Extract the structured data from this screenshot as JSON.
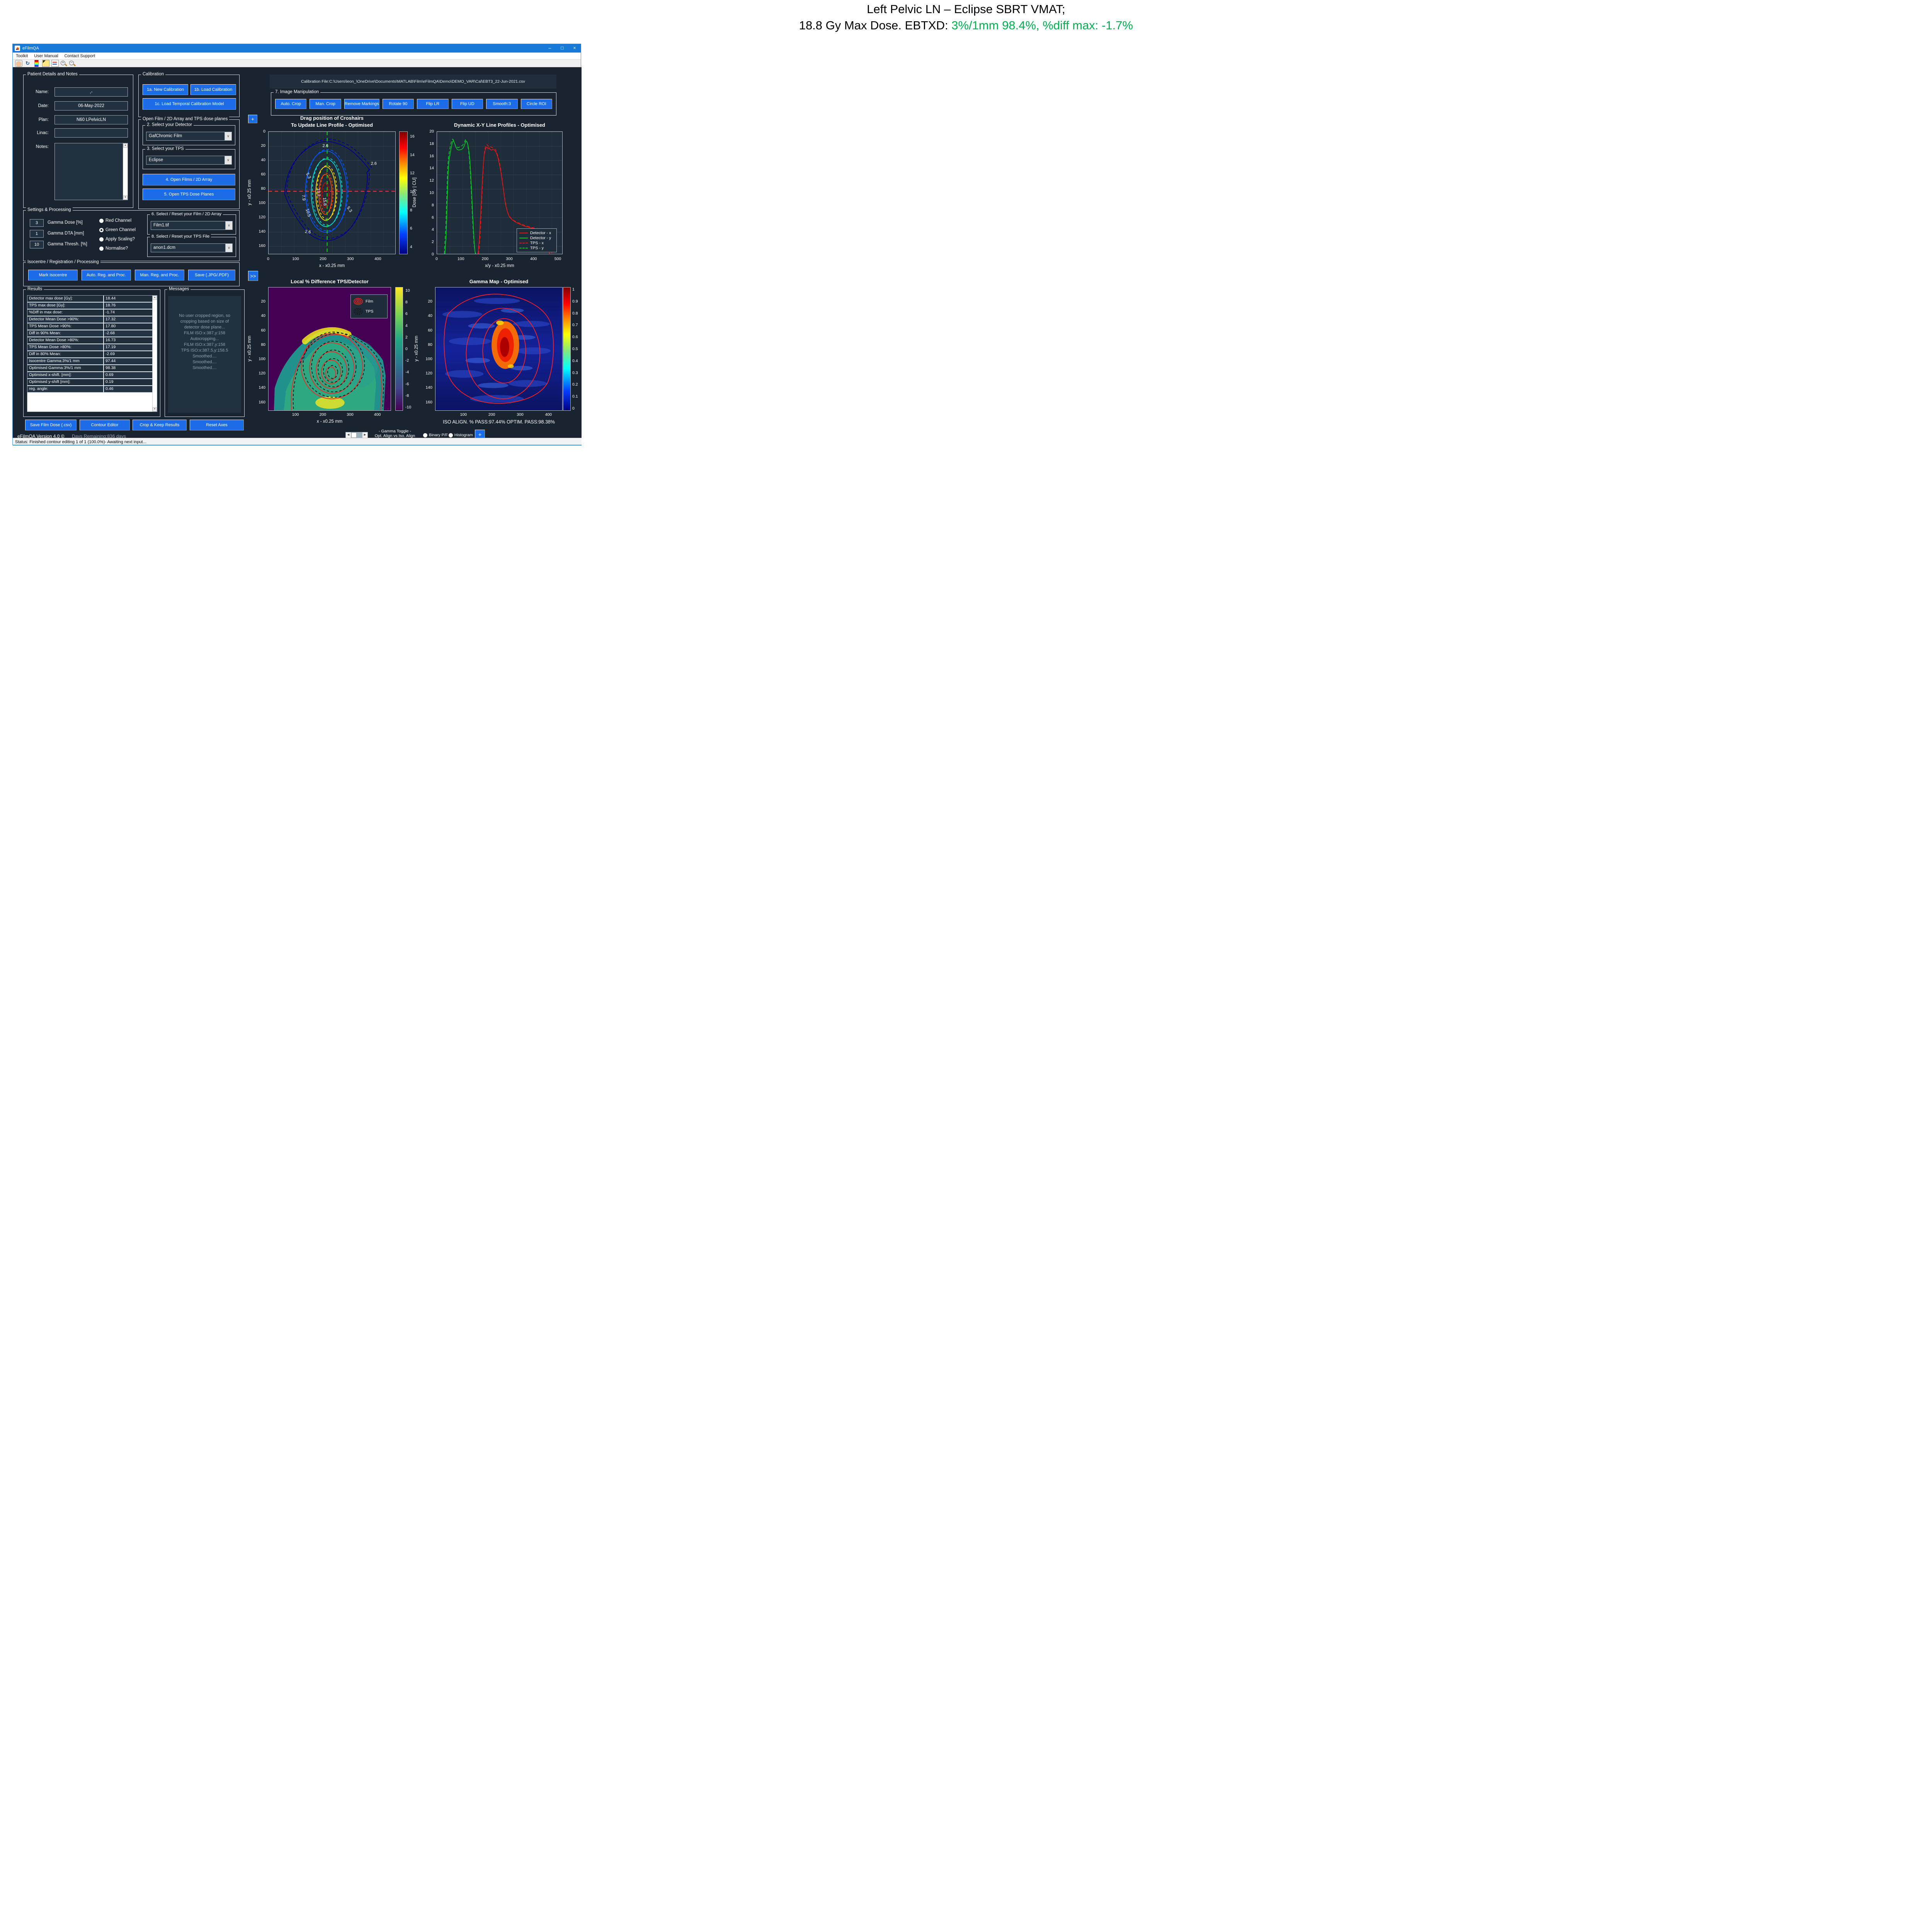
{
  "header": {
    "line1": "Left Pelvic LN – Eclipse SBRT VMAT;",
    "line2_black": "18.8 Gy Max Dose. EBTXD: ",
    "line2_green": "3%/1mm 98.4%, %diff max: -1.7%",
    "green_color": "#00b050"
  },
  "window": {
    "title": "eFilmQA",
    "minimize": "–",
    "maximize": "□",
    "close": "×"
  },
  "menu": {
    "items": [
      "Toolkit",
      "User Manual",
      "Contact Support"
    ]
  },
  "toolbar": {
    "icons": [
      "pan-hand-icon",
      "rotate-3d-icon",
      "colorbar-icon",
      "data-cursor-icon",
      "legend-icon",
      "zoom-in-icon",
      "zoom-out-icon"
    ]
  },
  "patient": {
    "title": "Patient Details and Notes",
    "name_label": "Name:",
    "name_value": ",-",
    "date_label": "Date:",
    "date_value": "06-May-2022",
    "plan_label": "Plan:",
    "plan_value": "N60 LPelvicLN",
    "linac_label": "Linac:",
    "linac_value": "",
    "notes_label": "Notes:",
    "notes_value": ""
  },
  "calibration": {
    "title": "Calibration",
    "btn_new": "1a. New Calibration",
    "btn_load": "1b. Load Calibration",
    "btn_temporal": "1c. Load Temporal Calibration Model"
  },
  "open_film": {
    "title": "Open Film / 2D Array and TPS dose planes",
    "detector_group": "2. Select your Detector",
    "detector_value": "GafChromic Film",
    "tps_group": "3. Select your TPS",
    "tps_value": "Eclipse",
    "btn_open_films": "4. Open Films / 2D Array",
    "btn_open_tps": "5. Open TPS Dose Planes"
  },
  "settings": {
    "title": "Settings & Processing",
    "fields": [
      {
        "value": "3",
        "label": "Gamma Dose [%]"
      },
      {
        "value": "1",
        "label": "Gamma DTA [mm]"
      },
      {
        "value": "10",
        "label": "Gamma Thresh. [%]"
      }
    ],
    "channels": [
      {
        "label": "Red Channel",
        "selected": false
      },
      {
        "label": "Green Channel",
        "selected": true
      },
      {
        "label": "Apply Scaling?",
        "selected": false
      },
      {
        "label": "Normalise?",
        "selected": false
      }
    ],
    "film_group": "6. Select / Reset your Film / 2D Array",
    "film_value": "Film1.tif",
    "tps_group": "8. Select / Reset your TPS File",
    "tps_value": "anon1.dcm"
  },
  "isocentre": {
    "title": "Isocentre / Registration / Processing",
    "buttons": [
      "Mark Isocentre",
      "Auto. Reg. and Proc.",
      "Man. Reg. and Proc.",
      "Save (.JPG/.PDF)"
    ]
  },
  "results": {
    "title": "Results",
    "rows": [
      {
        "label": "Detector max dose [Gy]:",
        "value": "18.44"
      },
      {
        "label": "TPS max dose [Gy]:",
        "value": "18.76"
      },
      {
        "label": "%Diff in max dose:",
        "value": "-1.74"
      },
      {
        "label": "Detector Mean Dose >90%:",
        "value": "17.32"
      },
      {
        "label": "TPS Mean Dose >90%:",
        "value": "17.80"
      },
      {
        "label": "Diff in 90% Mean:",
        "value": "-2.68"
      },
      {
        "label": "Detector Mean Dose >80%:",
        "value": "16.73"
      },
      {
        "label": "TPS Mean Dose >80%:",
        "value": "17.19"
      },
      {
        "label": "Diff in 80% Mean:",
        "value": "-2.69"
      },
      {
        "label": "Isocentre Gamma:3%/1 mm",
        "value": "97.44"
      },
      {
        "label": "Optimised Gamma:3%/1 mm",
        "value": "98.38"
      },
      {
        "label": "Optimised x-shift. [mm]:",
        "value": "0.69"
      },
      {
        "label": "Optimised y-shift [mm]:",
        "value": "0.19"
      },
      {
        "label": "reg. angle:",
        "value": "0.46"
      }
    ]
  },
  "messages": {
    "title": "Messages",
    "lines": [
      "No user cropped region, so",
      "cropping based on size of",
      "detector dose plane...",
      "FILM ISO:x:387,y:158",
      "Autocropping...",
      "FILM ISO:x:387,y:158",
      "TPS ISO:x:387.5,y:158.5",
      "Smoothed....",
      "Smoothed....",
      "Smoothed...."
    ]
  },
  "bottom_buttons": [
    "Save Film Dose (.csv)",
    "Contour Editor",
    "Crop & Keep Results",
    "Reset Axes"
  ],
  "footer": {
    "version": "eFilmQA Version 4.0 ©",
    "days": "Days Remaining:836 days"
  },
  "status_bar": "Status: Finished contour editing 1 of 1 (100.0%)- Awaiting next input...",
  "calibration_file": "Calibration File:C:\\Users\\leon_\\OneDrive\\Documents\\MATLAB\\Film\\eFilmQA\\Demo\\DEMO_VAR\\Cal\\EBT3_22-Jun-2021.csv",
  "image_manipulation": {
    "title": "7. Image Manipulation",
    "buttons": [
      "Auto. Crop",
      "Man. Crop",
      "Remove Markings",
      "Rotate 90",
      "Flip LR",
      "Flip UD",
      "Smooth:3",
      "Circle ROI"
    ]
  },
  "misc": {
    "plus": "+",
    "forward": ">>"
  },
  "gamma_toggle": {
    "label_line1": "- Gamma Toggle -",
    "label_line2": "Opt. Align vs Iso. Align",
    "radios": [
      {
        "label": "Binary P/F",
        "selected": false
      },
      {
        "label": "Histogram",
        "selected": false
      }
    ],
    "plus": "+"
  },
  "chart_data": [
    {
      "id": "crosshair_contour",
      "type": "contour",
      "title": [
        "Drag position of Croshairs",
        "To Update Line Profile - Optimised"
      ],
      "xlabel": "x - x0.25 mm",
      "ylabel": "y - x0.25 mm",
      "xticks": [
        0,
        100,
        200,
        300,
        400
      ],
      "yticks": [
        0,
        20,
        40,
        60,
        80,
        100,
        120,
        140,
        160
      ],
      "xlim": [
        0,
        465
      ],
      "ylim": [
        0,
        172
      ],
      "levels": [
        2.6,
        5.3,
        7.9,
        10.5,
        13.2,
        15.8
      ],
      "contour_labels": [
        "2.6",
        "5.3",
        "7.9",
        "10.5",
        "13.2",
        "15.8"
      ],
      "level_colors": [
        "#000090",
        "#0055ff",
        "#00d8d8",
        "#ffe000",
        "#ff4800",
        "#a81010"
      ],
      "crosshair": {
        "x": 215,
        "y": 84,
        "vertical_color": "#00dc00",
        "horizontal_color": "#ff2a2a"
      },
      "colorbar": {
        "ticks": [
          16,
          14,
          12,
          10,
          8,
          6,
          4
        ],
        "range": [
          3.2,
          16.55
        ],
        "colormap": "jet"
      },
      "grid": true
    },
    {
      "id": "line_profiles",
      "type": "line",
      "title": "Dynamic X-Y Line Profiles - Optimised",
      "xlabel": "x/y - x0.25 mm",
      "ylabel": "Dose [Gy | CU]",
      "xticks": [
        0,
        100,
        200,
        300,
        400,
        500
      ],
      "yticks": [
        0,
        2,
        4,
        6,
        8,
        10,
        12,
        14,
        16,
        18,
        20
      ],
      "xlim": [
        0,
        520
      ],
      "ylim": [
        0,
        20
      ],
      "legend_position": "lower-right",
      "grid": true,
      "series": [
        {
          "name": "Detector - x",
          "color": "#e81414",
          "dash": false,
          "points": [
            [
              170,
              0
            ],
            [
              176,
              2.5
            ],
            [
              182,
              7
            ],
            [
              187,
              11
            ],
            [
              192,
              14.5
            ],
            [
              196,
              16.2
            ],
            [
              200,
              17
            ],
            [
              204,
              17.4
            ],
            [
              208,
              17.5
            ],
            [
              212,
              17.2
            ],
            [
              216,
              17.4
            ],
            [
              220,
              17.1
            ],
            [
              226,
              17
            ],
            [
              232,
              17.1
            ],
            [
              238,
              17
            ],
            [
              243,
              16.8
            ],
            [
              248,
              16.4
            ],
            [
              254,
              15.6
            ],
            [
              260,
              14.5
            ],
            [
              266,
              13.2
            ],
            [
              272,
              11.6
            ],
            [
              278,
              9.8
            ],
            [
              284,
              8.2
            ],
            [
              292,
              6.9
            ],
            [
              300,
              6.1
            ],
            [
              312,
              5.6
            ],
            [
              326,
              5.2
            ],
            [
              342,
              4.9
            ],
            [
              360,
              4.6
            ],
            [
              380,
              4.35
            ],
            [
              400,
              4.15
            ],
            [
              420,
              4
            ],
            [
              440,
              3.9
            ],
            [
              455,
              3.85
            ],
            [
              466,
              3.8
            ],
            [
              467,
              0
            ]
          ]
        },
        {
          "name": "Detector - y",
          "color": "#00cc22",
          "dash": false,
          "points": [
            [
              33,
              0
            ],
            [
              38,
              3
            ],
            [
              42,
              8
            ],
            [
              46,
              13
            ],
            [
              50,
              15.5
            ],
            [
              54,
              16.3
            ],
            [
              58,
              17.2
            ],
            [
              62,
              18
            ],
            [
              66,
              18.5
            ],
            [
              70,
              18.4
            ],
            [
              74,
              18
            ],
            [
              78,
              17.5
            ],
            [
              84,
              17.1
            ],
            [
              90,
              17
            ],
            [
              96,
              17.05
            ],
            [
              102,
              17.1
            ],
            [
              108,
              17.3
            ],
            [
              112,
              17.6
            ],
            [
              116,
              18
            ],
            [
              120,
              18.5
            ],
            [
              124,
              18.4
            ],
            [
              128,
              17.9
            ],
            [
              132,
              17
            ],
            [
              136,
              15.5
            ],
            [
              140,
              13
            ],
            [
              144,
              10
            ],
            [
              148,
              6.5
            ],
            [
              152,
              3.5
            ],
            [
              156,
              1
            ],
            [
              159,
              0
            ]
          ]
        },
        {
          "name": "TPS - x",
          "color": "#e81414",
          "dash": true,
          "points": [
            [
              173,
              0
            ],
            [
              179,
              3
            ],
            [
              185,
              8
            ],
            [
              190,
              12.5
            ],
            [
              194,
              15.5
            ],
            [
              198,
              17
            ],
            [
              202,
              17.7
            ],
            [
              206,
              17.9
            ],
            [
              210,
              17.8
            ],
            [
              214,
              17.6
            ],
            [
              218,
              17.7
            ],
            [
              224,
              17.5
            ],
            [
              230,
              17.4
            ],
            [
              236,
              17.3
            ],
            [
              242,
              17.1
            ],
            [
              247,
              16.7
            ],
            [
              252,
              16.1
            ],
            [
              258,
              15.2
            ],
            [
              264,
              14
            ],
            [
              270,
              12.4
            ],
            [
              276,
              10.6
            ],
            [
              282,
              8.9
            ],
            [
              290,
              7.3
            ],
            [
              298,
              6.3
            ],
            [
              310,
              5.7
            ],
            [
              326,
              5.3
            ],
            [
              344,
              5
            ],
            [
              362,
              4.7
            ],
            [
              382,
              4.45
            ],
            [
              402,
              4.25
            ],
            [
              422,
              4.1
            ],
            [
              442,
              4
            ],
            [
              460,
              3.9
            ],
            [
              476,
              3.85
            ],
            [
              477,
              0
            ]
          ]
        },
        {
          "name": "TPS - y",
          "color": "#00cc22",
          "dash": true,
          "points": [
            [
              30,
              0
            ],
            [
              36,
              4
            ],
            [
              40,
              9
            ],
            [
              44,
              14
            ],
            [
              48,
              16
            ],
            [
              52,
              17
            ],
            [
              56,
              17.8
            ],
            [
              60,
              18.4
            ],
            [
              64,
              18.8
            ],
            [
              68,
              18.7
            ],
            [
              72,
              18.2
            ],
            [
              76,
              17.8
            ],
            [
              82,
              17.5
            ],
            [
              88,
              17.4
            ],
            [
              94,
              17.5
            ],
            [
              100,
              17.6
            ],
            [
              106,
              17.8
            ],
            [
              110,
              18
            ],
            [
              114,
              18.3
            ],
            [
              118,
              18.7
            ],
            [
              122,
              18.6
            ],
            [
              126,
              18.1
            ],
            [
              130,
              17.2
            ],
            [
              134,
              15.8
            ],
            [
              138,
              13.5
            ],
            [
              142,
              10.5
            ],
            [
              146,
              7
            ],
            [
              150,
              4
            ],
            [
              154,
              1.5
            ],
            [
              158,
              0.3
            ],
            [
              161,
              0
            ]
          ]
        }
      ]
    },
    {
      "id": "local_diff",
      "type": "heatmap",
      "title": "Local % Difference TPS/Detector",
      "xlabel": "x - x0.25 mm",
      "ylabel": "y - x0.25 mm",
      "xticks": [
        100,
        200,
        300,
        400
      ],
      "yticks": [
        20,
        40,
        60,
        80,
        100,
        120,
        140,
        160
      ],
      "xlim": [
        0,
        450
      ],
      "ylim": [
        0,
        172
      ],
      "colorbar": {
        "ticks": [
          10,
          8,
          6,
          4,
          2,
          0,
          -2,
          -4,
          -6,
          -8,
          -10
        ],
        "range": [
          -10,
          10
        ],
        "colormap": "viridis"
      },
      "legend": [
        {
          "label": "Film",
          "style": "red-solid-contours"
        },
        {
          "label": "TPS",
          "style": "black-dashed-contours"
        }
      ]
    },
    {
      "id": "gamma_map",
      "type": "heatmap",
      "title": "Gamma Map - Optimised",
      "xlabel": "",
      "ylabel": "y - x0.25 mm",
      "xticks": [
        100,
        200,
        300,
        400
      ],
      "yticks": [
        20,
        40,
        60,
        80,
        100,
        120,
        140,
        160
      ],
      "xlim": [
        0,
        450
      ],
      "ylim": [
        0,
        172
      ],
      "colorbar": {
        "ticks": [
          1,
          0.9,
          0.8,
          0.7,
          0.6,
          0.5,
          0.4,
          0.3,
          0.2,
          0.1,
          0
        ],
        "range": [
          0,
          1
        ],
        "colormap": "jet"
      },
      "caption": "ISO ALIGN. % PASS:97.44% OPTIM. PASS:98.38%"
    }
  ]
}
